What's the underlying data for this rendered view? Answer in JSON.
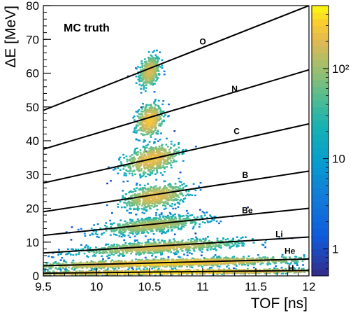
{
  "chart_data": {
    "type": "heatmap",
    "subtype": "2d-histogram-with-fit-lines",
    "annotation": "MC truth",
    "xlabel": "TOF [ns]",
    "ylabel": "ΔE [MeV]",
    "xlim": [
      9.5,
      12
    ],
    "ylim": [
      0,
      80
    ],
    "x_ticks": [
      "9.5",
      "10",
      "10.5",
      "11",
      "11.5",
      "12"
    ],
    "y_ticks": [
      "0",
      "10",
      "20",
      "30",
      "40",
      "50",
      "60",
      "70",
      "80"
    ],
    "colorbar": {
      "scale": "log",
      "tick_labels": [
        "1",
        "10",
        "10²"
      ],
      "tick_values": [
        1,
        10,
        100
      ],
      "range": [
        0.5,
        500
      ]
    },
    "grid": false,
    "lines": [
      {
        "label": "H",
        "y_at_xmin": 0.8,
        "y_at_xmax": 1.6
      },
      {
        "label": "He",
        "y_at_xmin": 3.0,
        "y_at_xmax": 5.0
      },
      {
        "label": "Li",
        "y_at_xmin": 6.8,
        "y_at_xmax": 11.5
      },
      {
        "label": "Be",
        "y_at_xmin": 12.0,
        "y_at_xmax": 20.0
      },
      {
        "label": "B",
        "y_at_xmin": 19.0,
        "y_at_xmax": 31.0
      },
      {
        "label": "C",
        "y_at_xmin": 27.5,
        "y_at_xmax": 45.0
      },
      {
        "label": "N",
        "y_at_xmin": 37.5,
        "y_at_xmax": 61.0
      },
      {
        "label": "O",
        "y_at_xmin": 49.0,
        "y_at_xmax": 80.0
      }
    ],
    "label_positions": [
      {
        "label": "O",
        "x": 11.0,
        "y": 68.5
      },
      {
        "label": "N",
        "x": 11.3,
        "y": 54.5
      },
      {
        "label": "C",
        "x": 11.32,
        "y": 42.0
      },
      {
        "label": "B",
        "x": 11.4,
        "y": 29.0
      },
      {
        "label": "Be",
        "x": 11.42,
        "y": 18.5
      },
      {
        "label": "Li",
        "x": 11.72,
        "y": 11.5
      },
      {
        "label": "He",
        "x": 11.82,
        "y": 6.5
      },
      {
        "label": "H",
        "x": 11.83,
        "y": 1.5
      }
    ],
    "clusters": [
      {
        "element": "O",
        "x": 10.5,
        "y": 60.5,
        "sx": 0.05,
        "sy": 2.3,
        "peak": 200,
        "n": 420
      },
      {
        "element": "N",
        "x": 10.5,
        "y": 46.0,
        "sx": 0.06,
        "sy": 2.3,
        "peak": 300,
        "n": 460
      },
      {
        "element": "C",
        "x": 10.52,
        "y": 34.5,
        "sx": 0.13,
        "sy": 2.0,
        "peak": 250,
        "n": 650
      },
      {
        "element": "B",
        "x": 10.55,
        "y": 23.5,
        "sx": 0.15,
        "sy": 1.7,
        "peak": 220,
        "n": 700
      },
      {
        "element": "Be",
        "x": 10.52,
        "y": 15.0,
        "sx": 0.25,
        "sy": 1.1,
        "peak": 150,
        "n": 800
      },
      {
        "element": "Li",
        "x": 10.6,
        "y": 8.5,
        "sx": 0.38,
        "sy": 0.9,
        "peak": 200,
        "n": 1000
      },
      {
        "element": "He",
        "x": 10.65,
        "y": 3.8,
        "sx": 0.65,
        "sy": 0.6,
        "peak": 400,
        "n": 1700
      },
      {
        "element": "H",
        "x": 10.7,
        "y": 1.1,
        "sx": 0.85,
        "sy": 0.35,
        "peak": 500,
        "n": 1500
      }
    ]
  }
}
